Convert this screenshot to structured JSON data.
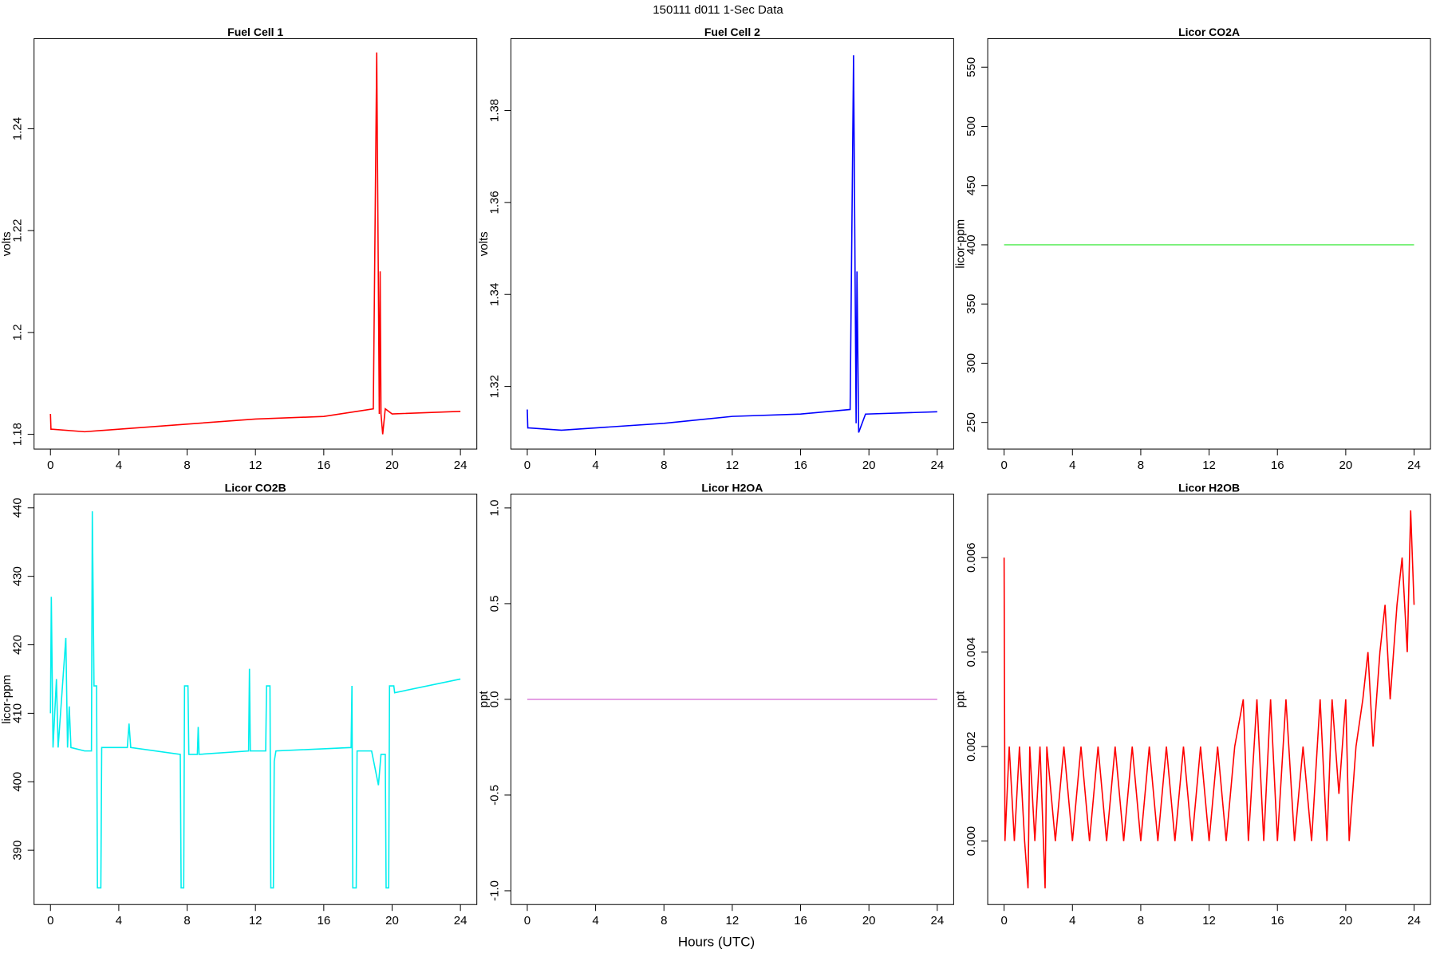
{
  "title": "150111   d011   1-Sec Data",
  "xlabel": "Hours (UTC)",
  "chart_data": [
    {
      "type": "line",
      "title": "Fuel Cell 1",
      "ylabel": "volts",
      "color": "#ff0000",
      "xlim": [
        -0.96,
        24.96
      ],
      "xticks": [
        0,
        4,
        8,
        12,
        16,
        20,
        24
      ],
      "ylim": [
        1.1771,
        1.2577
      ],
      "yticks": [
        1.18,
        1.2,
        1.22,
        1.24
      ],
      "x": [
        0,
        0.03,
        0.1,
        2,
        4,
        8,
        12,
        16,
        18.9,
        19.1,
        19.25,
        19.3,
        19.35,
        19.45,
        19.6,
        20,
        24
      ],
      "values": [
        1.184,
        1.181,
        1.181,
        1.1805,
        1.181,
        1.182,
        1.183,
        1.1835,
        1.185,
        1.255,
        1.184,
        1.212,
        1.184,
        1.18,
        1.185,
        1.184,
        1.1845
      ]
    },
    {
      "type": "line",
      "title": "Fuel Cell 2",
      "ylabel": "volts",
      "color": "#0000ff",
      "xlim": [
        -0.96,
        24.96
      ],
      "xticks": [
        0,
        4,
        8,
        12,
        16,
        20,
        24
      ],
      "ylim": [
        1.3064,
        1.3956
      ],
      "yticks": [
        1.32,
        1.34,
        1.36,
        1.38
      ],
      "x": [
        0,
        0.03,
        0.1,
        2,
        4,
        8,
        12,
        16,
        18.9,
        19.1,
        19.25,
        19.3,
        19.4,
        19.8,
        24
      ],
      "values": [
        1.315,
        1.311,
        1.311,
        1.3105,
        1.311,
        1.312,
        1.3135,
        1.314,
        1.315,
        1.392,
        1.312,
        1.345,
        1.31,
        1.314,
        1.3145
      ]
    },
    {
      "type": "line",
      "title": "Licor CO2A",
      "ylabel": "licor-ppm",
      "color": "#66ee66",
      "xlim": [
        -0.96,
        24.96
      ],
      "xticks": [
        0,
        4,
        8,
        12,
        16,
        20,
        24
      ],
      "ylim": [
        227.5,
        574.1
      ],
      "yticks": [
        250,
        300,
        350,
        400,
        450,
        500,
        550
      ],
      "x": [
        0,
        24
      ],
      "values": [
        400,
        400
      ]
    },
    {
      "type": "line",
      "title": "Licor CO2B",
      "ylabel": "licor-ppm",
      "color": "#00eeee",
      "xlim": [
        -0.96,
        24.96
      ],
      "xticks": [
        0,
        4,
        8,
        12,
        16,
        20,
        24
      ],
      "ylim": [
        382.07,
        442.0
      ],
      "yticks": [
        390,
        400,
        410,
        420,
        430,
        440
      ],
      "x": [
        0,
        0.05,
        0.15,
        0.35,
        0.45,
        0.9,
        1,
        1.1,
        1.2,
        2,
        2.4,
        2.45,
        2.55,
        2.7,
        2.75,
        2.95,
        3,
        4.5,
        4.6,
        4.7,
        7.6,
        7.65,
        7.8,
        7.85,
        8.05,
        8.1,
        8.6,
        8.65,
        8.7,
        11.6,
        11.65,
        11.7,
        12.6,
        12.65,
        12.85,
        12.9,
        13.05,
        13.1,
        13.2,
        17.6,
        17.65,
        17.7,
        17.9,
        17.95,
        18.8,
        19,
        19.2,
        19.35,
        19.6,
        19.65,
        19.8,
        19.85,
        20.1,
        20.15,
        24
      ],
      "values": [
        410,
        427,
        405,
        415,
        405,
        421,
        405,
        411,
        405,
        404.5,
        404.5,
        439.5,
        414,
        414,
        384.5,
        384.5,
        405,
        405,
        408.5,
        405,
        404,
        384.5,
        384.5,
        414,
        414,
        404,
        404,
        408,
        404,
        404.5,
        416.5,
        404.5,
        404.5,
        414,
        414,
        384.5,
        384.5,
        403,
        404.5,
        405,
        414,
        384.5,
        384.5,
        404.5,
        404.5,
        402,
        399.5,
        404,
        404,
        384.5,
        384.5,
        414,
        414,
        413,
        415
      ]
    },
    {
      "type": "line",
      "title": "Licor H2OA",
      "ylabel": "ppt",
      "color": "#dd88dd",
      "xlim": [
        -0.96,
        24.96
      ],
      "xticks": [
        0,
        4,
        8,
        12,
        16,
        20,
        24
      ],
      "ylim": [
        -1.072,
        1.072
      ],
      "yticks": [
        {
          "value": -1,
          "label": "-1.0"
        },
        -0.5,
        {
          "value": 0,
          "label": "0.0"
        },
        0.5,
        {
          "value": 1,
          "label": "1.0"
        }
      ],
      "x": [
        0,
        24
      ],
      "values": [
        0,
        0
      ]
    },
    {
      "type": "line",
      "title": "Licor H2OB",
      "ylabel": "ppt",
      "color": "#ff0000",
      "xlim": [
        -0.96,
        24.96
      ],
      "xticks": [
        0,
        4,
        8,
        12,
        16,
        20,
        24
      ],
      "ylim": [
        -0.001344,
        0.007344
      ],
      "yticks": [
        {
          "value": 0,
          "label": "0.000"
        },
        {
          "value": 0.002,
          "label": "0.002"
        },
        {
          "value": 0.004,
          "label": "0.004"
        },
        {
          "value": 0.006,
          "label": "0.006"
        }
      ],
      "x": [
        0,
        0.05,
        0.3,
        0.6,
        0.9,
        1.2,
        1.4,
        1.5,
        1.8,
        2.1,
        2.4,
        2.5,
        3,
        3.5,
        4,
        4.5,
        5,
        5.5,
        6,
        6.5,
        7,
        7.5,
        8,
        8.5,
        9,
        9.5,
        10,
        10.5,
        11,
        11.5,
        12,
        12.5,
        13,
        13.5,
        14,
        14.3,
        14.8,
        15.2,
        15.6,
        16,
        16.5,
        17,
        17.5,
        18,
        18.5,
        18.9,
        19.2,
        19.6,
        20,
        20.2,
        20.6,
        21,
        21.3,
        21.6,
        22,
        22.3,
        22.6,
        23,
        23.3,
        23.6,
        23.8,
        24
      ],
      "values": [
        0.006,
        0,
        0.002,
        0,
        0.002,
        0,
        -0.001,
        0.002,
        0,
        0.002,
        -0.001,
        0.002,
        0,
        0.002,
        0,
        0.002,
        0,
        0.002,
        0,
        0.002,
        0,
        0.002,
        0,
        0.002,
        0,
        0.002,
        0,
        0.002,
        0,
        0.002,
        0,
        0.002,
        0,
        0.002,
        0.003,
        0,
        0.003,
        0,
        0.003,
        0,
        0.003,
        0,
        0.002,
        0,
        0.003,
        0,
        0.003,
        0.001,
        0.003,
        0,
        0.002,
        0.003,
        0.004,
        0.002,
        0.004,
        0.005,
        0.003,
        0.005,
        0.006,
        0.004,
        0.007,
        0.005
      ]
    }
  ]
}
